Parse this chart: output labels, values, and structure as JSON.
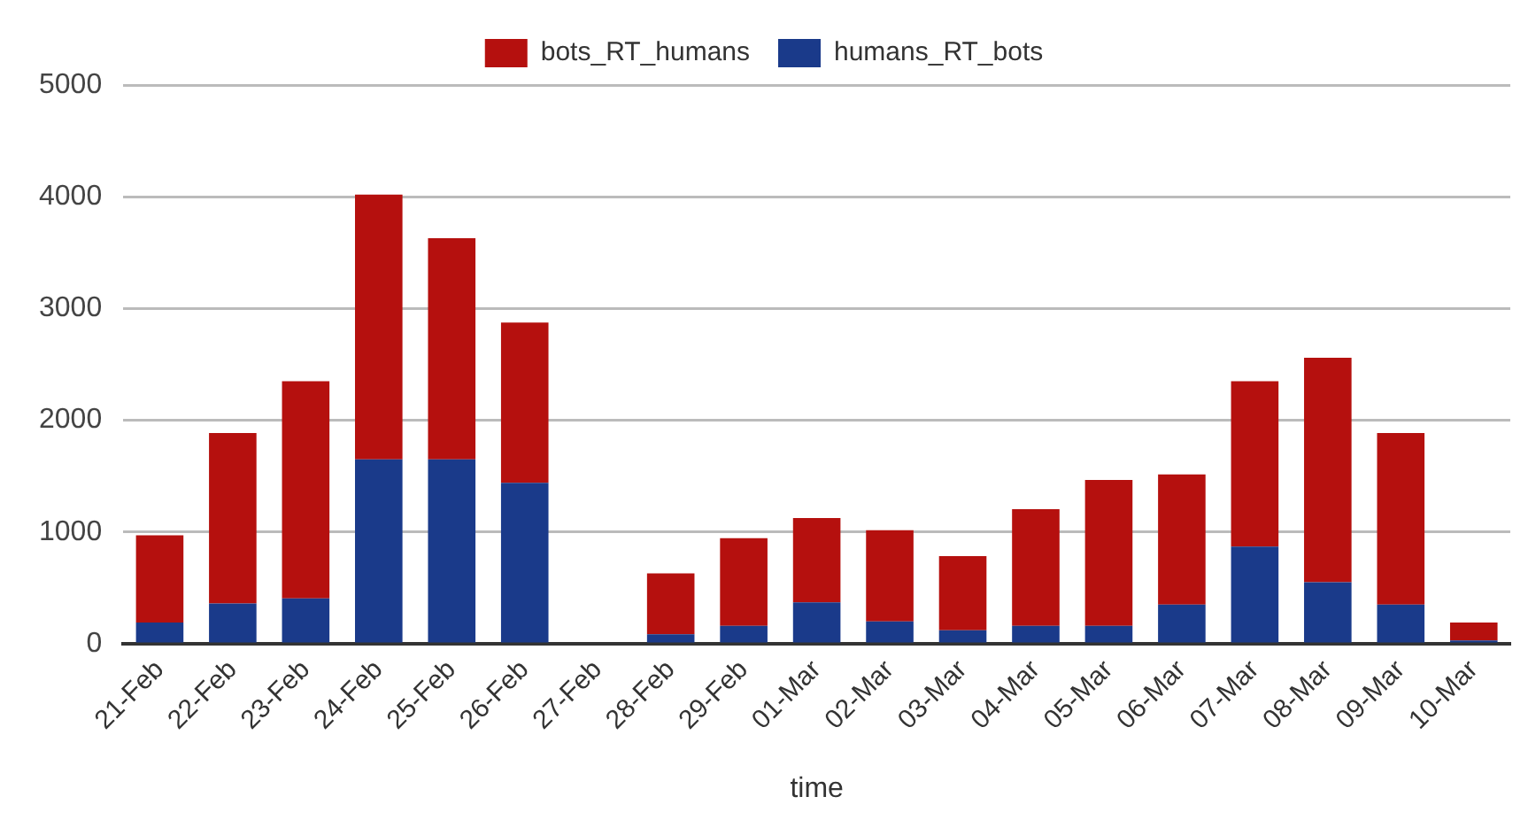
{
  "chart_data": {
    "type": "bar",
    "stacked": true,
    "xlabel": "time",
    "categories": [
      "21-Feb",
      "22-Feb",
      "23-Feb",
      "24-Feb",
      "25-Feb",
      "26-Feb",
      "27-Feb",
      "28-Feb",
      "29-Feb",
      "01-Mar",
      "02-Mar",
      "03-Mar",
      "04-Mar",
      "05-Mar",
      "06-Mar",
      "07-Mar",
      "08-Mar",
      "09-Mar",
      "10-Mar"
    ],
    "series": [
      {
        "name": "humans_RT_bots",
        "color": "#1a3a8a",
        "values": [
          190,
          360,
          405,
          1650,
          1650,
          1440,
          0,
          85,
          160,
          370,
          200,
          120,
          160,
          160,
          350,
          870,
          550,
          350,
          30
        ]
      },
      {
        "name": "bots_RT_humans",
        "color": "#b5100e",
        "values": [
          780,
          1525,
          1945,
          2370,
          1980,
          1435,
          0,
          545,
          785,
          755,
          815,
          665,
          1045,
          1305,
          1165,
          1480,
          2010,
          1535,
          160
        ]
      }
    ],
    "ylim": [
      0,
      5000
    ],
    "yticks": [
      0,
      1000,
      2000,
      3000,
      4000,
      5000
    ],
    "grid": "y",
    "legend": "top"
  }
}
